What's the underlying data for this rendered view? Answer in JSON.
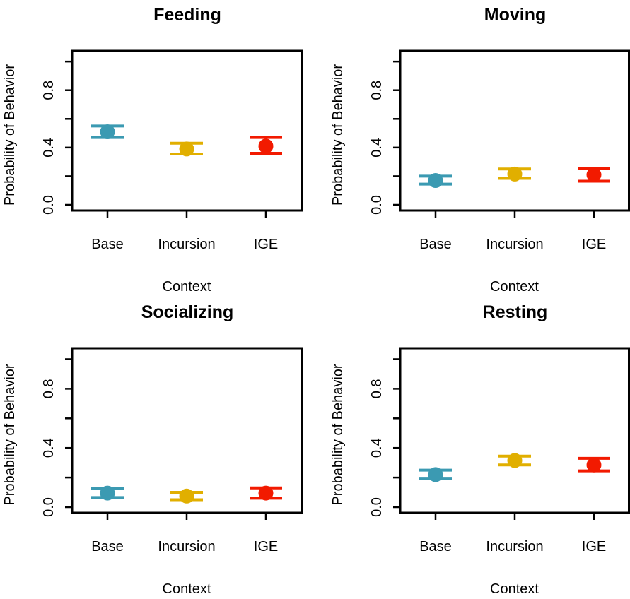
{
  "chart_data": [
    {
      "type": "scatter",
      "title": "Feeding",
      "xlabel": "Context",
      "ylabel": "Probability of Behavior",
      "categories": [
        "Base",
        "Incursion",
        "IGE"
      ],
      "ylim": [
        0,
        1.05
      ],
      "yticks": [
        "0.0",
        "0.4",
        "0.8"
      ],
      "points": [
        {
          "category": "Base",
          "value": 0.51,
          "lower": 0.47,
          "upper": 0.55,
          "color": "#3b9ab2"
        },
        {
          "category": "Incursion",
          "value": 0.39,
          "lower": 0.355,
          "upper": 0.43,
          "color": "#e1af00"
        },
        {
          "category": "IGE",
          "value": 0.41,
          "lower": 0.36,
          "upper": 0.47,
          "color": "#f21a00"
        }
      ]
    },
    {
      "type": "scatter",
      "title": "Moving",
      "xlabel": "Context",
      "ylabel": "Probability of Behavior",
      "categories": [
        "Base",
        "Incursion",
        "IGE"
      ],
      "ylim": [
        0,
        1.05
      ],
      "yticks": [
        "0.0",
        "0.4",
        "0.8"
      ],
      "points": [
        {
          "category": "Base",
          "value": 0.17,
          "lower": 0.145,
          "upper": 0.2,
          "color": "#3b9ab2"
        },
        {
          "category": "Incursion",
          "value": 0.215,
          "lower": 0.185,
          "upper": 0.25,
          "color": "#e1af00"
        },
        {
          "category": "IGE",
          "value": 0.21,
          "lower": 0.165,
          "upper": 0.255,
          "color": "#f21a00"
        }
      ]
    },
    {
      "type": "scatter",
      "title": "Socializing",
      "xlabel": "Context",
      "ylabel": "Probability of Behavior",
      "categories": [
        "Base",
        "Incursion",
        "IGE"
      ],
      "ylim": [
        0,
        1.05
      ],
      "yticks": [
        "0.0",
        "0.4",
        "0.8"
      ],
      "points": [
        {
          "category": "Base",
          "value": 0.095,
          "lower": 0.065,
          "upper": 0.125,
          "color": "#3b9ab2"
        },
        {
          "category": "Incursion",
          "value": 0.075,
          "lower": 0.05,
          "upper": 0.1,
          "color": "#e1af00"
        },
        {
          "category": "IGE",
          "value": 0.095,
          "lower": 0.06,
          "upper": 0.13,
          "color": "#f21a00"
        }
      ]
    },
    {
      "type": "scatter",
      "title": "Resting",
      "xlabel": "Context",
      "ylabel": "Probability of Behavior",
      "categories": [
        "Base",
        "Incursion",
        "IGE"
      ],
      "ylim": [
        0,
        1.05
      ],
      "yticks": [
        "0.0",
        "0.4",
        "0.8"
      ],
      "points": [
        {
          "category": "Base",
          "value": 0.22,
          "lower": 0.195,
          "upper": 0.25,
          "color": "#3b9ab2"
        },
        {
          "category": "Incursion",
          "value": 0.315,
          "lower": 0.285,
          "upper": 0.345,
          "color": "#e1af00"
        },
        {
          "category": "IGE",
          "value": 0.285,
          "lower": 0.245,
          "upper": 0.33,
          "color": "#f21a00"
        }
      ]
    }
  ]
}
